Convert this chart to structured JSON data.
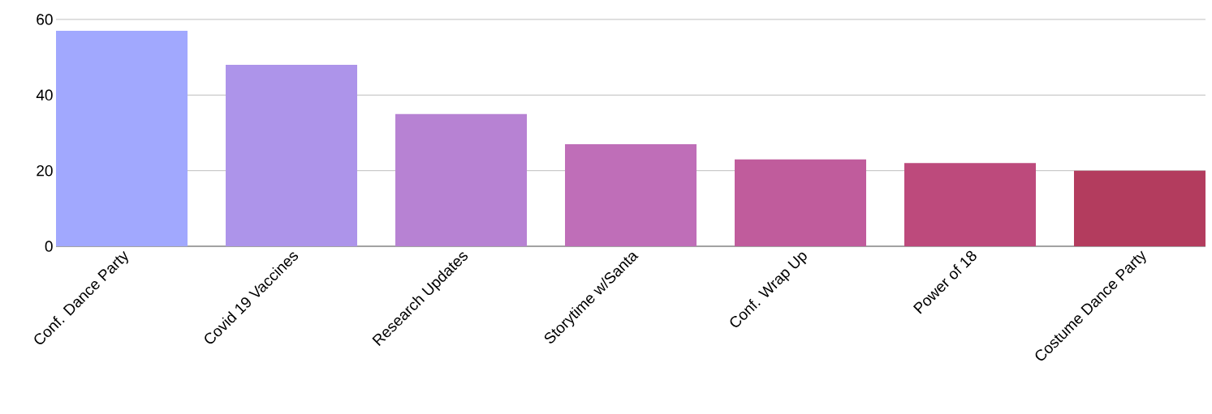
{
  "chart_data": {
    "type": "bar",
    "categories": [
      "Conf. Dance Party",
      "Covid 19 Vaccines",
      "Research Updates",
      "Storytime w/Santa",
      "Conf. Wrap Up",
      "Power of 18",
      "Costume Dance Party"
    ],
    "values": [
      57,
      48,
      35,
      27,
      23,
      22,
      20
    ],
    "colors": [
      "#a1a8fe",
      "#ad94ea",
      "#b782d3",
      "#bf6eb8",
      "#c05c9c",
      "#bd4a7c",
      "#b33c5e"
    ],
    "ylim": [
      0,
      60
    ],
    "yticks": [
      0,
      20,
      40,
      60
    ],
    "grid": "y"
  }
}
